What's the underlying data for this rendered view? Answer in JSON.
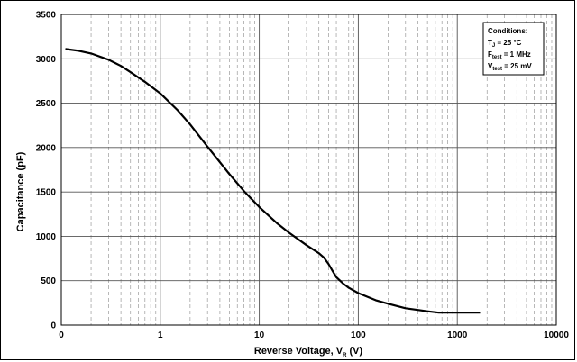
{
  "chart_data": {
    "type": "line",
    "title": "",
    "xlabel": {
      "main": "Reverse Voltage, V",
      "sub": "R",
      "unit": "(V)"
    },
    "ylabel": "Capacitance (pF)",
    "x_scale": "log",
    "xlim": [
      0.1,
      10000
    ],
    "ylim": [
      0,
      3500
    ],
    "x_tick_labels": [
      "0",
      "1",
      "10",
      "100",
      "1000",
      "10000"
    ],
    "y_ticks": [
      0,
      500,
      1000,
      1500,
      2000,
      2500,
      3000,
      3500
    ],
    "y_tick_labels": [
      "0",
      "500",
      "1000",
      "1500",
      "2000",
      "2500",
      "3000",
      "3500"
    ],
    "grid": true,
    "series": [
      {
        "color": "#000000",
        "x": [
          0.11,
          0.15,
          0.2,
          0.3,
          0.4,
          0.5,
          0.7,
          1,
          1.5,
          2,
          3,
          5,
          7,
          10,
          15,
          20,
          30,
          40,
          45,
          50,
          55,
          60,
          70,
          80,
          100,
          150,
          200,
          300,
          400,
          500,
          650,
          800,
          1000,
          1300,
          1700
        ],
        "y": [
          3110,
          3090,
          3060,
          2990,
          2920,
          2850,
          2740,
          2610,
          2420,
          2260,
          2010,
          1700,
          1510,
          1330,
          1150,
          1040,
          900,
          810,
          760,
          690,
          610,
          540,
          470,
          420,
          360,
          280,
          240,
          190,
          170,
          155,
          140,
          140,
          140,
          140,
          140
        ]
      }
    ],
    "annotation": {
      "heading": "Conditions:",
      "lines": [
        {
          "main": "T",
          "sub": "J",
          "rest": " = 25 °C"
        },
        {
          "main": "F",
          "sub": "test",
          "rest": " = 1 MHz"
        },
        {
          "main": "V",
          "sub": "test",
          "rest": " = 25 mV"
        }
      ],
      "position": "top-right"
    }
  }
}
